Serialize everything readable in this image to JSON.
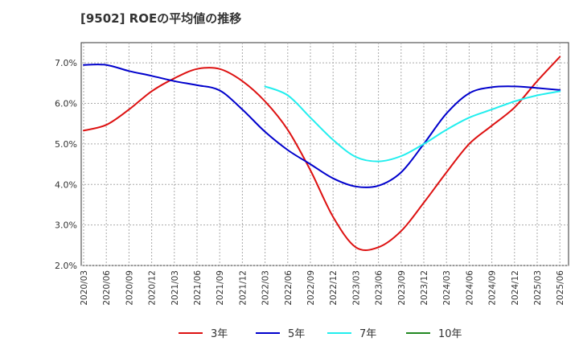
{
  "title": "[9502]  ROEの平均値の推移",
  "colors": {
    "3年": "#dd1111",
    "5年": "#0000cc",
    "7年": "#22eeee",
    "10年": "#228822"
  },
  "chart_data": {
    "type": "line",
    "title": "[9502]  ROEの平均値の推移",
    "xlabel": "",
    "ylabel": "",
    "x": [
      "2020/03",
      "2020/06",
      "2020/09",
      "2020/12",
      "2021/03",
      "2021/06",
      "2021/09",
      "2021/12",
      "2022/03",
      "2022/06",
      "2022/09",
      "2022/12",
      "2023/03",
      "2023/06",
      "2023/09",
      "2023/12",
      "2024/03",
      "2024/06",
      "2024/09",
      "2024/12",
      "2025/03",
      "2025/06"
    ],
    "y_ticks": [
      "2.0%",
      "3.0%",
      "4.0%",
      "5.0%",
      "6.0%",
      "7.0%"
    ],
    "ylim": [
      2.0,
      7.5
    ],
    "grid": true,
    "legend_position": "bottom",
    "series": [
      {
        "name": "3年",
        "color": "#dd1111",
        "values": [
          5.33,
          5.47,
          5.85,
          6.3,
          6.62,
          6.85,
          6.85,
          6.55,
          6.05,
          5.35,
          4.35,
          3.2,
          2.45,
          2.45,
          2.85,
          3.55,
          4.3,
          5.0,
          5.45,
          5.9,
          6.55,
          7.15
        ]
      },
      {
        "name": "5年",
        "color": "#0000cc",
        "values": [
          6.95,
          6.95,
          6.8,
          6.68,
          6.55,
          6.45,
          6.32,
          5.85,
          5.3,
          4.85,
          4.5,
          4.15,
          3.95,
          3.97,
          4.3,
          5.0,
          5.75,
          6.25,
          6.4,
          6.42,
          6.38,
          6.33
        ]
      },
      {
        "name": "7年",
        "color": "#22eeee",
        "values": [
          null,
          null,
          null,
          null,
          null,
          null,
          null,
          null,
          6.42,
          6.2,
          5.65,
          5.1,
          4.68,
          4.57,
          4.7,
          5.0,
          5.35,
          5.65,
          5.85,
          6.05,
          6.2,
          6.3
        ]
      },
      {
        "name": "10年",
        "color": "#228822",
        "values": [
          null,
          null,
          null,
          null,
          null,
          null,
          null,
          null,
          null,
          null,
          null,
          null,
          null,
          null,
          null,
          null,
          null,
          null,
          null,
          null,
          null,
          null
        ]
      }
    ]
  }
}
